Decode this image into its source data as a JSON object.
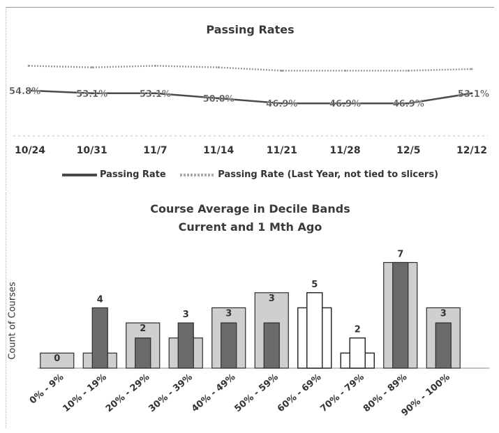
{
  "chart_data": [
    {
      "type": "line",
      "title": "Passing Rates",
      "categories": [
        "10/24",
        "10/31",
        "11/7",
        "11/14",
        "11/21",
        "11/28",
        "12/5",
        "12/12"
      ],
      "series": [
        {
          "name": "Passing Rate",
          "values": [
            54.8,
            53.1,
            53.1,
            50.0,
            46.9,
            46.9,
            46.9,
            53.1
          ],
          "labels": [
            "54.8%",
            "53.1%",
            "53.1%",
            "50.0%",
            "46.9%",
            "46.9%",
            "46.9%",
            "53.1%"
          ],
          "color": "#4a4a4a"
        },
        {
          "name": "Passing Rate (Last Year, not tied to slicers)",
          "values": [
            70,
            69,
            70,
            69,
            67,
            67,
            67,
            68
          ],
          "color": "#9a9a9a"
        }
      ],
      "ylim": [
        20,
        80
      ],
      "legend": "bottom",
      "grid": false
    },
    {
      "type": "bar",
      "title_lines": [
        "Course Average in Decile Bands",
        "Current and 1 Mth Ago"
      ],
      "ylabel": "Count of Courses",
      "categories": [
        "0% - 9%",
        "10% - 19%",
        "20% - 29%",
        "30% - 39%",
        "40% - 49%",
        "50% - 59%",
        "60% - 69%",
        "70% - 79%",
        "80% - 89%",
        "90% - 100%"
      ],
      "series": [
        {
          "name": "Current",
          "values": [
            0,
            4,
            2,
            3,
            3,
            3,
            5,
            2,
            7,
            3
          ]
        },
        {
          "name": "1 Mth Ago",
          "values": [
            1,
            1,
            3,
            2,
            4,
            5,
            4,
            1,
            7,
            4
          ]
        }
      ],
      "data_labels": [
        "0",
        "4",
        "2",
        "3",
        "3",
        "3",
        "5",
        "2",
        "7",
        "3"
      ],
      "ylim": [
        0,
        7.3
      ],
      "colors": {
        "outer_fill": "#cfcfcf",
        "inner_fill": "#6b6b6b",
        "highlight_fill": "#ffffff",
        "stroke": "#2b2b2b"
      }
    }
  ],
  "legend": {
    "current": "Passing Rate",
    "last_year": "Passing Rate (Last Year, not tied to slicers)"
  }
}
